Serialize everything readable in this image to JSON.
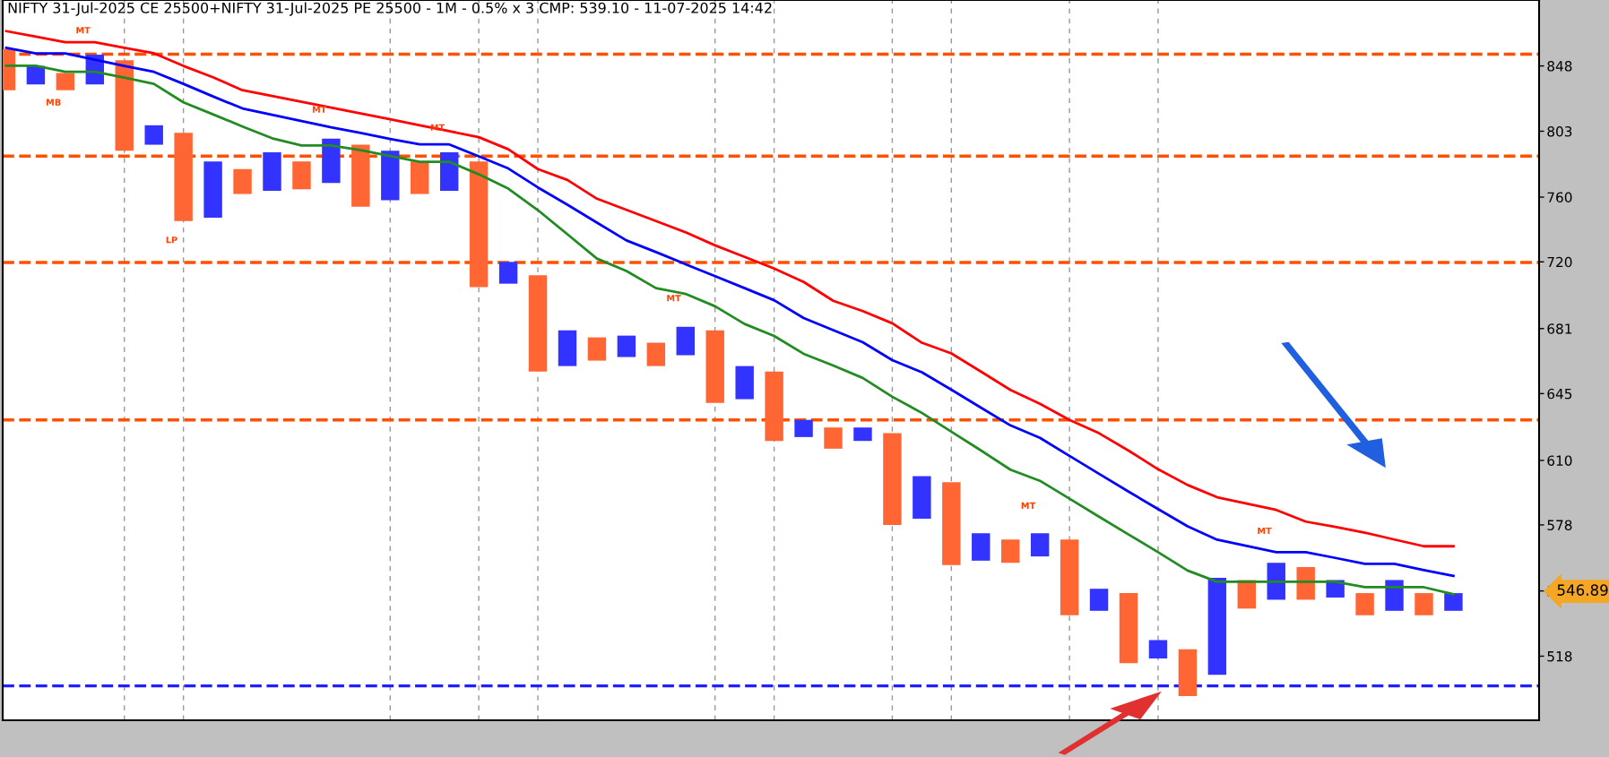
{
  "chart_data": {
    "type": "bar",
    "title": "NIFTY 31-Jul-2025 CE 25500+NIFTY 31-Jul-2025 PE 25500 - 1M - 0.5% x 3 CMP: 539.10 - 11-07-2025 14:42",
    "categories": [
      null,
      null,
      null,
      null,
      null,
      null,
      null,
      null,
      null,
      null,
      null,
      null,
      null,
      null,
      null,
      null,
      null,
      null,
      null,
      null,
      null,
      null,
      null,
      null,
      null,
      null,
      null,
      null,
      null,
      null,
      null,
      null,
      null,
      null,
      null,
      null,
      null,
      null,
      null,
      null,
      null,
      null,
      null,
      null,
      null,
      null,
      null,
      null,
      null,
      null
    ],
    "log": true,
    "ylim": [
      491,
      896
    ],
    "yticks": [
      518,
      547,
      578,
      610,
      645,
      681,
      720,
      760,
      803,
      848
    ],
    "grid": "x",
    "legend": false,
    "series": [
      {
        "type": "bar",
        "base": [
          831,
          835,
          831,
          835,
          790,
          794,
          745,
          747,
          762,
          764,
          765,
          769,
          754,
          758,
          762,
          764,
          705,
          707,
          657,
          660,
          663,
          665,
          660,
          666,
          640,
          642,
          620,
          622,
          616,
          620,
          578,
          581,
          559,
          561,
          560,
          563,
          536,
          538,
          515,
          517,
          501,
          510,
          539,
          543,
          543,
          544,
          536,
          538,
          536,
          538
        ],
        "values": [
          29,
          13,
          12,
          21,
          62,
          13,
          57,
          36,
          16,
          25,
          18,
          29,
          40,
          32,
          21,
          25,
          78,
          13,
          55,
          20,
          13,
          12,
          13,
          16,
          40,
          18,
          37,
          9,
          11,
          7,
          46,
          21,
          40,
          13,
          11,
          11,
          35,
          10,
          31,
          8,
          20,
          43,
          13,
          17,
          15,
          8,
          10,
          14,
          10,
          8
        ],
        "colors": [
          "#ff6633",
          "#3333ff",
          "#ff6633",
          "#3333ff",
          "#ff6633",
          "#3333ff",
          "#ff6633",
          "#3333ff",
          "#ff6633",
          "#3333ff",
          "#ff6633",
          "#3333ff",
          "#ff6633",
          "#3333ff",
          "#ff6633",
          "#3333ff",
          "#ff6633",
          "#3333ff",
          "#ff6633",
          "#3333ff",
          "#ff6633",
          "#3333ff",
          "#ff6633",
          "#3333ff",
          "#ff6633",
          "#3333ff",
          "#ff6633",
          "#3333ff",
          "#ff6633",
          "#3333ff",
          "#ff6633",
          "#3333ff",
          "#ff6633",
          "#3333ff",
          "#ff6633",
          "#3333ff",
          "#ff6633",
          "#3333ff",
          "#ff6633",
          "#3333ff",
          "#ff6633",
          "#3333ff",
          "#ff6633",
          "#3333ff",
          "#ff6633",
          "#3333ff",
          "#ff6633",
          "#3333ff",
          "#ff6633",
          "#3333ff"
        ]
      },
      {
        "type": "line",
        "color": "#ff0000",
        "values": [
          873,
          869,
          865,
          865,
          861,
          857,
          848,
          840,
          831,
          827,
          823,
          819,
          815,
          811,
          807,
          803,
          799,
          791,
          778,
          771,
          759,
          752,
          745,
          738,
          730,
          723,
          716,
          708,
          697,
          691,
          684,
          673,
          667,
          657,
          647,
          639.5,
          631,
          624,
          615,
          605.5,
          597.6,
          591.5,
          588.4,
          585.3,
          579.6,
          577.1,
          574.3,
          571,
          567.8,
          567.8
        ]
      },
      {
        "type": "line",
        "color": "#0000ff",
        "values": [
          860.9,
          856.9,
          856.9,
          852.5,
          848,
          843.8,
          835.4,
          826.7,
          818.4,
          814.1,
          809.9,
          805.6,
          801.8,
          797.8,
          794.2,
          794.2,
          786.3,
          778.4,
          766.2,
          755.2,
          744,
          733,
          725.9,
          718.6,
          711.5,
          704.4,
          697.3,
          687,
          680.1,
          673.3,
          663.3,
          656.6,
          647.1,
          637.5,
          628.1,
          621.6,
          612.3,
          603.2,
          594.3,
          585.7,
          577.3,
          570.9,
          568,
          565,
          565,
          562.3,
          559.5,
          559.5,
          556.6,
          553.9
        ]
      },
      {
        "type": "line",
        "color": "#228b22",
        "values": [
          848.2,
          848.2,
          843.8,
          843.8,
          839.8,
          835.4,
          822.6,
          814.4,
          806.2,
          798.3,
          793.5,
          793.5,
          790.4,
          786.6,
          782.8,
          782.8,
          774.6,
          765.4,
          751.8,
          736.8,
          722,
          714.5,
          704.4,
          701,
          693.8,
          683.6,
          676.8,
          666.8,
          660.3,
          653.5,
          643.3,
          634.7,
          624.8,
          615.1,
          605.3,
          599.7,
          590.8,
          582,
          573.4,
          565,
          556.4,
          551.2,
          551.2,
          551.2,
          551.2,
          551.2,
          548.7,
          548.7,
          548.7,
          545.5
        ]
      }
    ],
    "ref_lines": [
      {
        "axis": "y",
        "value": 856.4,
        "color": "#ff5000",
        "line_style": "dashed"
      },
      {
        "axis": "y",
        "value": 786.5,
        "color": "#ff5000",
        "line_style": "dashed"
      },
      {
        "axis": "y",
        "value": 719.6,
        "color": "#ff5000",
        "line_style": "dashed"
      },
      {
        "axis": "y",
        "value": 631,
        "color": "#ff5000",
        "line_style": "dashed"
      },
      {
        "axis": "y",
        "value": 505.3,
        "color": "#1f1fff",
        "line_style": "dashed"
      }
    ],
    "annotations": [
      "MT",
      "MB",
      "LP",
      "MT",
      "MT",
      "MT",
      "MT",
      "MT",
      "546.89"
    ]
  }
}
